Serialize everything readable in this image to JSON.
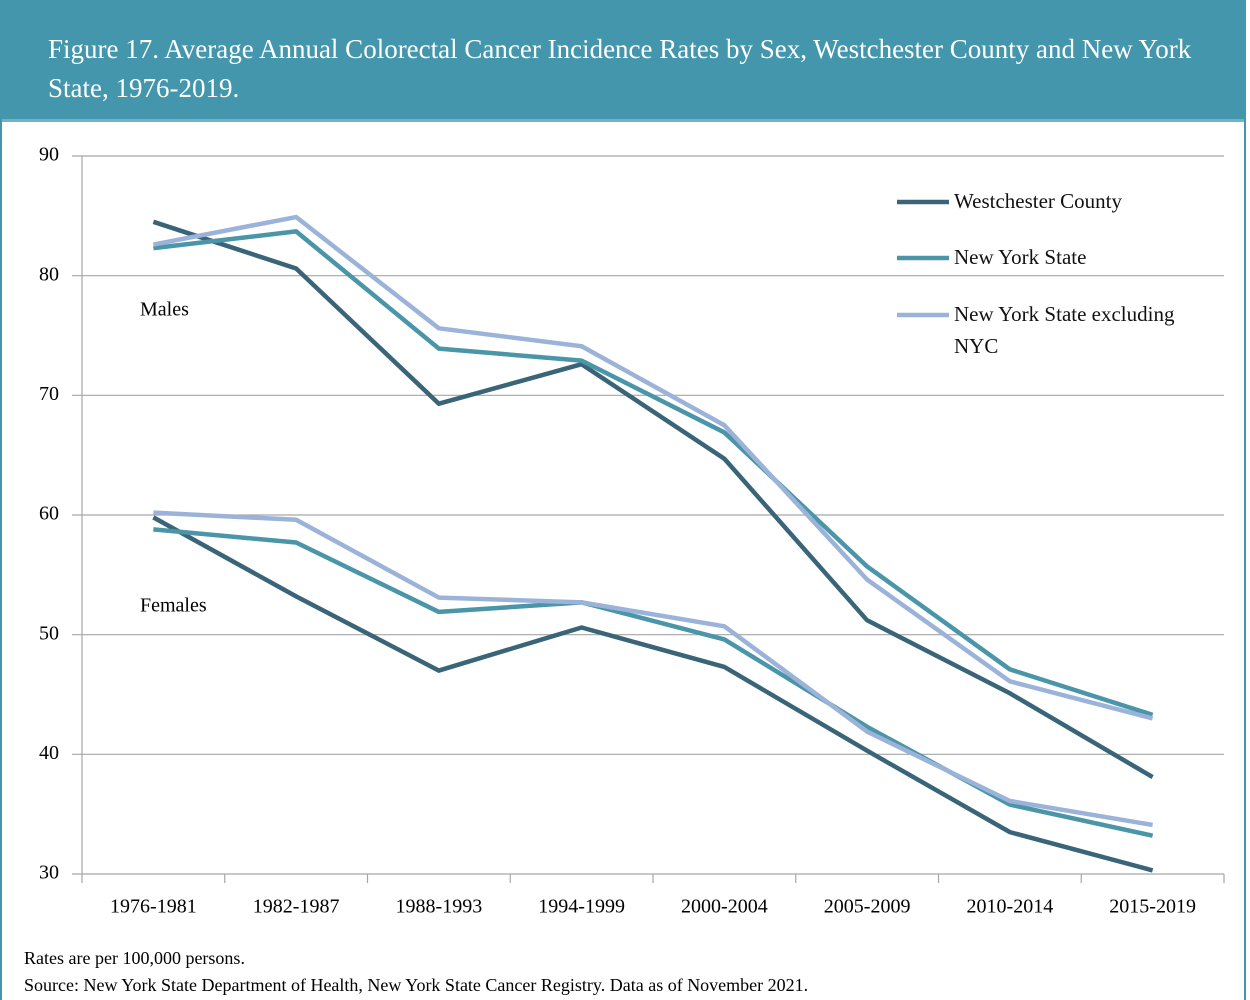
{
  "chart_data": {
    "type": "line",
    "title": "Figure 17. Average Annual Colorectal Cancer Incidence Rates by Sex, Westchester County and New York State, 1976-2019.",
    "categories": [
      "1976-1981",
      "1982-1987",
      "1988-1993",
      "1994-1999",
      "2000-2004",
      "2005-2009",
      "2010-2014",
      "2015-2019"
    ],
    "series": [
      {
        "name": "Westchester County",
        "color": "#3a6478",
        "values": [
          84.5,
          80.6,
          69.3,
          72.6,
          64.7,
          51.2,
          45.1,
          38.1
        ]
      },
      {
        "name": "New York State",
        "color": "#4a95a8",
        "values": [
          82.3,
          83.7,
          73.9,
          72.9,
          66.9,
          55.7,
          47.1,
          43.3
        ]
      },
      {
        "name": "New York State excluding NYC",
        "color": "#9bb3d9",
        "values": [
          82.6,
          84.9,
          75.6,
          74.1,
          67.5,
          54.6,
          46.1,
          43.0
        ]
      }
    ],
    "series_females": [
      {
        "values": [
          59.8,
          53.2,
          47.0,
          50.6,
          47.3,
          40.3,
          33.5,
          30.3
        ]
      },
      {
        "values": [
          58.8,
          57.7,
          51.9,
          52.7,
          49.6,
          42.3,
          35.8,
          33.2
        ]
      },
      {
        "values": [
          60.2,
          59.6,
          53.1,
          52.7,
          50.7,
          41.9,
          36.1,
          34.1
        ]
      }
    ],
    "annotations": [
      "Males",
      "Females"
    ],
    "ylim": [
      30,
      90
    ],
    "yticks": [
      30,
      40,
      50,
      60,
      70,
      80,
      90
    ],
    "grid": true,
    "legend": "top-right",
    "notes": [
      "Rates are per 100,000 persons.",
      "Source: New York State Department of Health, New York State Cancer Registry. Data as of November 2021."
    ]
  }
}
